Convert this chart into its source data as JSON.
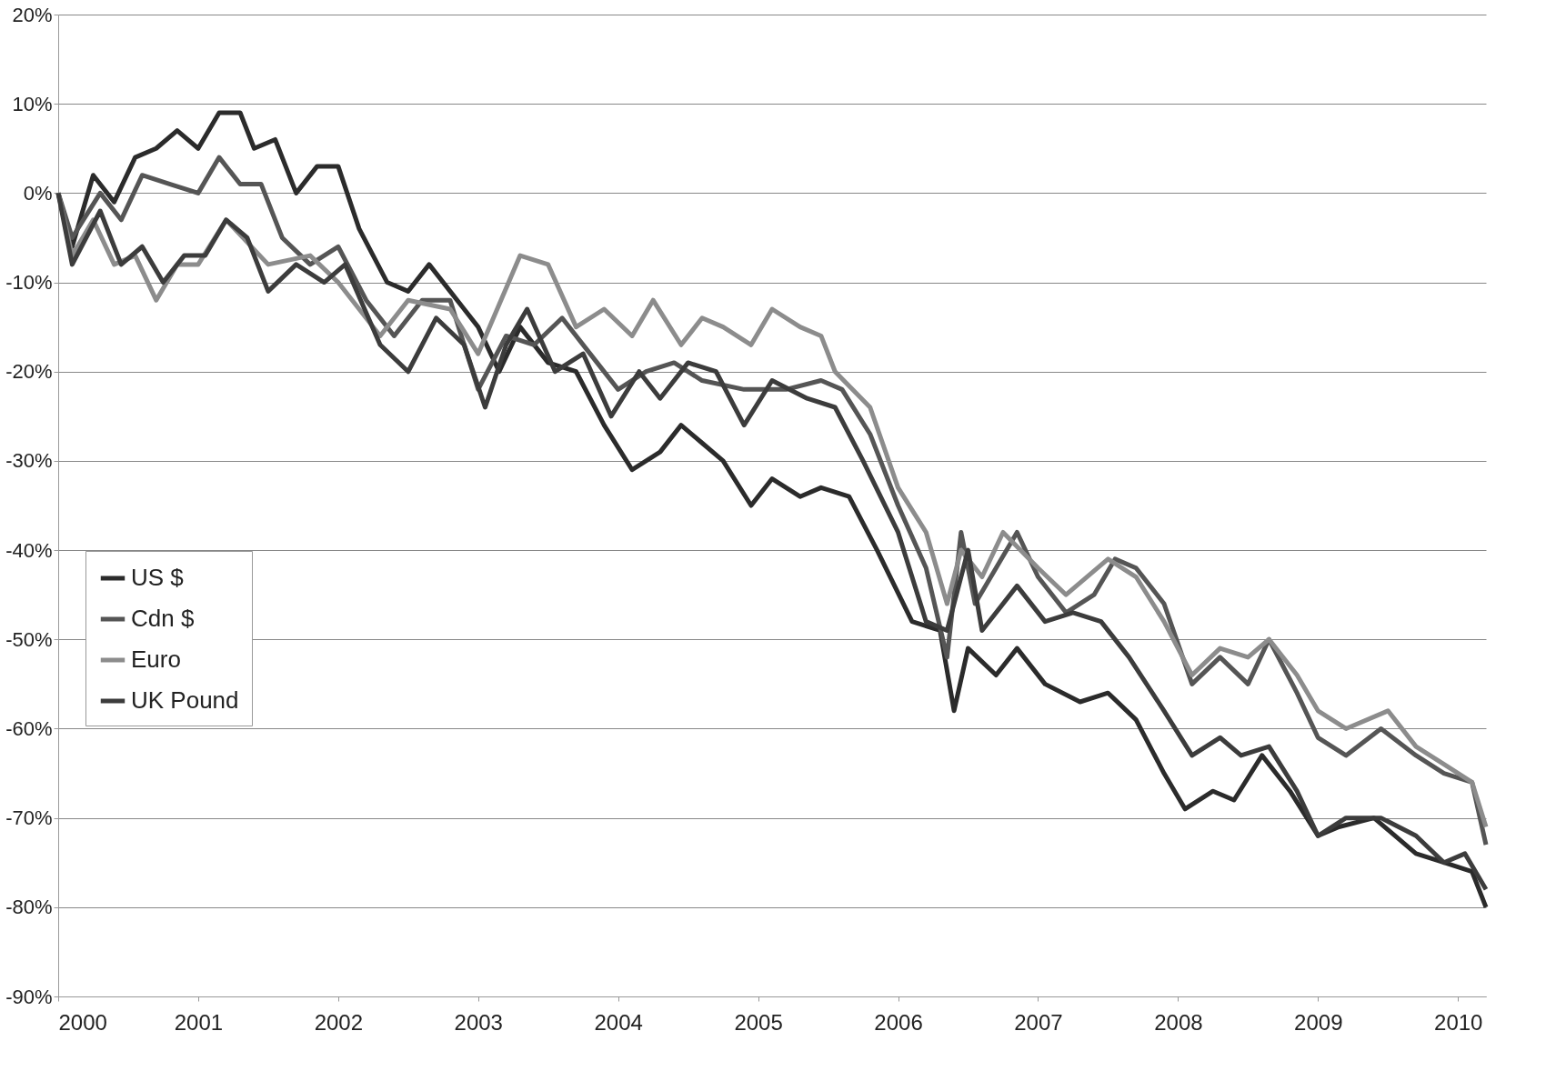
{
  "chart_data": {
    "type": "line",
    "xlim": [
      2000,
      2010.2
    ],
    "xticks": [
      2000,
      2001,
      2002,
      2003,
      2004,
      2005,
      2006,
      2007,
      2008,
      2009,
      2010
    ],
    "ylim": [
      -90,
      20
    ],
    "yticks": [
      {
        "value": -90,
        "label": "-90%"
      },
      {
        "value": -80,
        "label": "-80%"
      },
      {
        "value": -70,
        "label": "-70%"
      },
      {
        "value": -60,
        "label": "-60%"
      },
      {
        "value": -50,
        "label": "-50%"
      },
      {
        "value": -40,
        "label": "-40%"
      },
      {
        "value": -30,
        "label": "-30%"
      },
      {
        "value": -20,
        "label": "-20%"
      },
      {
        "value": -10,
        "label": "-10%"
      },
      {
        "value": 0,
        "label": "0%"
      },
      {
        "value": 10,
        "label": "10%"
      },
      {
        "value": 20,
        "label": "20%"
      }
    ],
    "grid": "y",
    "legend": "bottom left",
    "marker": "none",
    "line_style": "solid",
    "series": [
      {
        "name": "US $",
        "color": "#2b2b2b",
        "x": [
          2000,
          2000.1,
          2000.25,
          2000.4,
          2000.55,
          2000.7,
          2000.85,
          2001.0,
          2001.15,
          2001.3,
          2001.4,
          2001.55,
          2001.7,
          2001.85,
          2002.0,
          2002.15,
          2002.35,
          2002.5,
          2002.65,
          2002.8,
          2003.0,
          2003.15,
          2003.3,
          2003.5,
          2003.7,
          2003.9,
          2004.1,
          2004.3,
          2004.45,
          2004.6,
          2004.75,
          2004.95,
          2005.1,
          2005.3,
          2005.45,
          2005.65,
          2005.85,
          2006.1,
          2006.3,
          2006.4,
          2006.5,
          2006.7,
          2006.85,
          2007.05,
          2007.3,
          2007.5,
          2007.7,
          2007.9,
          2008.05,
          2008.25,
          2008.4,
          2008.6,
          2008.8,
          2009.0,
          2009.15,
          2009.4,
          2009.7,
          2009.9,
          2010.1,
          2010.2
        ],
        "values": [
          0,
          -6,
          2,
          -1,
          4,
          5,
          7,
          5,
          9,
          9,
          5,
          6,
          0,
          3,
          3,
          -4,
          -10,
          -11,
          -8,
          -11,
          -15,
          -20,
          -15,
          -19,
          -20,
          -26,
          -31,
          -29,
          -26,
          -28,
          -30,
          -35,
          -32,
          -34,
          -33,
          -34,
          -40,
          -48,
          -49,
          -58,
          -51,
          -54,
          -51,
          -55,
          -57,
          -56,
          -59,
          -65,
          -69,
          -67,
          -68,
          -63,
          -67,
          -72,
          -71,
          -70,
          -74,
          -75,
          -76,
          -80
        ]
      },
      {
        "name": "Cdn $",
        "color": "#555555",
        "x": [
          2000,
          2000.1,
          2000.3,
          2000.45,
          2000.6,
          2000.8,
          2001.0,
          2001.15,
          2001.3,
          2001.45,
          2001.6,
          2001.8,
          2002.0,
          2002.2,
          2002.4,
          2002.6,
          2002.8,
          2003.0,
          2003.2,
          2003.4,
          2003.6,
          2003.8,
          2004.0,
          2004.2,
          2004.4,
          2004.6,
          2004.9,
          2005.2,
          2005.45,
          2005.6,
          2005.8,
          2006.0,
          2006.2,
          2006.35,
          2006.45,
          2006.55,
          2006.7,
          2006.85,
          2007.0,
          2007.2,
          2007.4,
          2007.55,
          2007.7,
          2007.9,
          2008.1,
          2008.3,
          2008.5,
          2008.65,
          2008.85,
          2009.0,
          2009.2,
          2009.45,
          2009.7,
          2009.9,
          2010.1,
          2010.2
        ],
        "values": [
          0,
          -5,
          0,
          -3,
          2,
          1,
          0,
          4,
          1,
          1,
          -5,
          -8,
          -6,
          -12,
          -16,
          -12,
          -12,
          -22,
          -16,
          -17,
          -14,
          -18,
          -22,
          -20,
          -19,
          -21,
          -22,
          -22,
          -21,
          -22,
          -27,
          -35,
          -42,
          -52,
          -38,
          -46,
          -42,
          -38,
          -43,
          -47,
          -45,
          -41,
          -42,
          -46,
          -55,
          -52,
          -55,
          -50,
          -56,
          -61,
          -63,
          -60,
          -63,
          -65,
          -66,
          -73
        ]
      },
      {
        "name": "Euro",
        "color": "#8c8c8c",
        "x": [
          2000,
          2000.1,
          2000.25,
          2000.4,
          2000.55,
          2000.7,
          2000.85,
          2001.0,
          2001.2,
          2001.5,
          2001.8,
          2002.0,
          2002.3,
          2002.5,
          2002.8,
          2003.0,
          2003.3,
          2003.5,
          2003.7,
          2003.9,
          2004.1,
          2004.25,
          2004.45,
          2004.6,
          2004.75,
          2004.95,
          2005.1,
          2005.3,
          2005.45,
          2005.55,
          2005.8,
          2006.0,
          2006.2,
          2006.35,
          2006.45,
          2006.6,
          2006.75,
          2007.0,
          2007.2,
          2007.5,
          2007.7,
          2007.9,
          2008.1,
          2008.3,
          2008.5,
          2008.65,
          2008.85,
          2009.0,
          2009.2,
          2009.5,
          2009.7,
          2009.9,
          2010.1,
          2010.2
        ],
        "values": [
          0,
          -7,
          -3,
          -8,
          -7,
          -12,
          -8,
          -8,
          -3,
          -8,
          -7,
          -10,
          -16,
          -12,
          -13,
          -18,
          -7,
          -8,
          -15,
          -13,
          -16,
          -12,
          -17,
          -14,
          -15,
          -17,
          -13,
          -15,
          -16,
          -20,
          -24,
          -33,
          -38,
          -46,
          -40,
          -43,
          -38,
          -42,
          -45,
          -41,
          -43,
          -48,
          -54,
          -51,
          -52,
          -50,
          -54,
          -58,
          -60,
          -58,
          -62,
          -64,
          -66,
          -71
        ]
      },
      {
        "name": "UK Pound",
        "color": "#3c3c3c",
        "x": [
          2000,
          2000.1,
          2000.3,
          2000.45,
          2000.6,
          2000.75,
          2000.9,
          2001.05,
          2001.2,
          2001.35,
          2001.5,
          2001.7,
          2001.9,
          2002.05,
          2002.3,
          2002.5,
          2002.7,
          2002.9,
          2003.05,
          2003.2,
          2003.35,
          2003.55,
          2003.75,
          2003.95,
          2004.15,
          2004.3,
          2004.5,
          2004.7,
          2004.9,
          2005.1,
          2005.35,
          2005.55,
          2005.75,
          2006.0,
          2006.2,
          2006.35,
          2006.5,
          2006.6,
          2006.85,
          2007.05,
          2007.25,
          2007.45,
          2007.65,
          2007.9,
          2008.1,
          2008.3,
          2008.45,
          2008.65,
          2008.85,
          2009.0,
          2009.2,
          2009.45,
          2009.7,
          2009.9,
          2010.05,
          2010.2
        ],
        "values": [
          0,
          -8,
          -2,
          -8,
          -6,
          -10,
          -7,
          -7,
          -3,
          -5,
          -11,
          -8,
          -10,
          -8,
          -17,
          -20,
          -14,
          -17,
          -24,
          -17,
          -13,
          -20,
          -18,
          -25,
          -20,
          -23,
          -19,
          -20,
          -26,
          -21,
          -23,
          -24,
          -30,
          -38,
          -48,
          -49,
          -40,
          -49,
          -44,
          -48,
          -47,
          -48,
          -52,
          -58,
          -63,
          -61,
          -63,
          -62,
          -67,
          -72,
          -70,
          -70,
          -72,
          -75,
          -74,
          -78
        ]
      }
    ]
  }
}
